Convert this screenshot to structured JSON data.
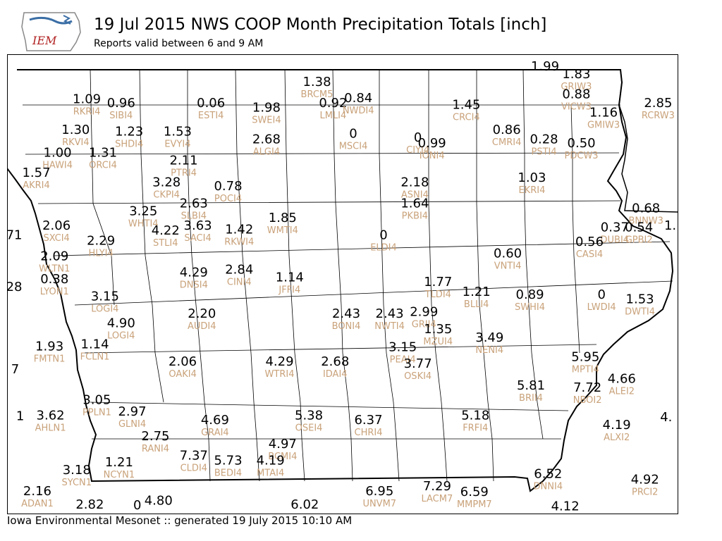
{
  "header": {
    "title": "19 Jul 2015 NWS COOP Month Precipitation Totals [inch]",
    "subtitle": "Reports valid between 6 and 9 AM",
    "logo_text": "IEM"
  },
  "footer": {
    "text": "Iowa Environmental Mesonet :: generated 19 July 2015 10:10 AM"
  },
  "colors": {
    "value": "#000000",
    "station": "#c9a27a",
    "logo_red": "#b22222",
    "logo_blue": "#3a6ea5"
  },
  "stations": [
    {
      "id": "RKRI4",
      "value": "1.09",
      "lon": -96.06,
      "lat": 43.44
    },
    {
      "id": "SIBI4",
      "value": "0.96",
      "lon": -95.72,
      "lat": 43.4
    },
    {
      "id": "ESTI4",
      "value": "0.06",
      "lon": -94.83,
      "lat": 43.4
    },
    {
      "id": "BRCM5",
      "value": "1.38",
      "lon": -93.78,
      "lat": 43.62
    },
    {
      "id": "SWEI4",
      "value": "1.98",
      "lon": -94.28,
      "lat": 43.35
    },
    {
      "id": "LMLI4",
      "value": "0.92",
      "lon": -93.62,
      "lat": 43.4
    },
    {
      "id": "NWDI4",
      "value": "0.84",
      "lon": -93.37,
      "lat": 43.45
    },
    {
      "id": "CRCI4",
      "value": "1.45",
      "lon": -92.3,
      "lat": 43.38
    },
    {
      "id": "GRIW3",
      "value": "1.83",
      "lon": -91.21,
      "lat": 43.7
    },
    {
      "id": "VICW3",
      "value": "0.88",
      "lon": -91.21,
      "lat": 43.49
    },
    {
      "id": "GMIW3",
      "value": "1.16",
      "lon": -90.94,
      "lat": 43.3
    },
    {
      "id": "RCRW3",
      "value": "2.85",
      "lon": -90.4,
      "lat": 43.4
    },
    {
      "id": "RKVI4",
      "value": "1.30",
      "lon": -96.17,
      "lat": 43.12
    },
    {
      "id": "SHDI4",
      "value": "1.23",
      "lon": -95.64,
      "lat": 43.1
    },
    {
      "id": "EVYI4",
      "value": "1.53",
      "lon": -95.16,
      "lat": 43.1
    },
    {
      "id": "MSCI4",
      "value": "0",
      "lon": -93.42,
      "lat": 43.08
    },
    {
      "id": "CIYI4",
      "value": "0",
      "lon": -92.78,
      "lat": 43.04
    },
    {
      "id": "IONI4",
      "value": "0.99",
      "lon": -92.64,
      "lat": 42.98
    },
    {
      "id": "CMRI4",
      "value": "0.86",
      "lon": -91.9,
      "lat": 43.12
    },
    {
      "id": "PSTI4",
      "value": "0.28",
      "lon": -91.53,
      "lat": 43.02
    },
    {
      "id": "PDCW3",
      "value": "0.50",
      "lon": -91.16,
      "lat": 42.98
    },
    {
      "id": "ALGI4",
      "value": "2.68",
      "lon": -94.28,
      "lat": 43.02
    },
    {
      "id": "HAWI4",
      "value": "1.00",
      "lon": -96.35,
      "lat": 42.88
    },
    {
      "id": "ORCI4",
      "value": "1.31",
      "lon": -95.9,
      "lat": 42.88
    },
    {
      "id": "PTRI4",
      "value": "2.11",
      "lon": -95.1,
      "lat": 42.8
    },
    {
      "id": "AKRI4",
      "value": "1.57",
      "lon": -96.56,
      "lat": 42.67
    },
    {
      "id": "CKPI4",
      "value": "3.28",
      "lon": -95.27,
      "lat": 42.57
    },
    {
      "id": "POCI4",
      "value": "0.78",
      "lon": -94.66,
      "lat": 42.53
    },
    {
      "id": "ASNI4",
      "value": "2.18",
      "lon": -92.81,
      "lat": 42.57
    },
    {
      "id": "EKRI4",
      "value": "1.03",
      "lon": -91.65,
      "lat": 42.62
    },
    {
      "id": "SLBI4",
      "value": "2.63",
      "lon": -95.0,
      "lat": 42.35
    },
    {
      "id": "PKBI4",
      "value": "1.64",
      "lon": -92.81,
      "lat": 42.35
    },
    {
      "id": "WHTI4",
      "value": "3.25",
      "lon": -95.5,
      "lat": 42.27
    },
    {
      "id": "BNNW3",
      "value": "0.68",
      "lon": -90.52,
      "lat": 42.3
    },
    {
      "id": "WMTI4",
      "value": "1.85",
      "lon": -94.12,
      "lat": 42.2
    },
    {
      "id": "SXCI4",
      "value": "2.06",
      "lon": -96.36,
      "lat": 42.12
    },
    {
      "id": "STLI4",
      "value": "4.22",
      "lon": -95.28,
      "lat": 42.07
    },
    {
      "id": "SACI4",
      "value": "3.63",
      "lon": -94.96,
      "lat": 42.12
    },
    {
      "id": "RKWI4",
      "value": "1.42",
      "lon": -94.55,
      "lat": 42.08
    },
    {
      "id": "ELDI4",
      "value": "0",
      "lon": -93.12,
      "lat": 42.02
    },
    {
      "id": "DUBI4",
      "value": "0.37",
      "lon": -90.83,
      "lat": 42.1
    },
    {
      "id": "GPBI2",
      "value": "0.54",
      "lon": -90.59,
      "lat": 42.1
    },
    {
      "id": "CASI4",
      "value": "0.56",
      "lon": -91.08,
      "lat": 41.95
    },
    {
      "id": "HLYI4",
      "value": "2.29",
      "lon": -95.92,
      "lat": 41.96
    },
    {
      "id": "WLTN1",
      "value": "2.09",
      "lon": -96.38,
      "lat": 41.8
    },
    {
      "id": "VNTI4",
      "value": "0.60",
      "lon": -91.89,
      "lat": 41.83
    },
    {
      "id": "DNSI4",
      "value": "4.29",
      "lon": -95.0,
      "lat": 41.63
    },
    {
      "id": "CINI4",
      "value": "2.84",
      "lon": -94.55,
      "lat": 41.66
    },
    {
      "id": "JFFI4",
      "value": "1.14",
      "lon": -94.05,
      "lat": 41.58
    },
    {
      "id": "LYON1",
      "value": "0.38",
      "lon": -96.38,
      "lat": 41.56
    },
    {
      "id": "TLDI4",
      "value": "1.77",
      "lon": -92.58,
      "lat": 41.53
    },
    {
      "id": "BLLI4",
      "value": "1.21",
      "lon": -92.2,
      "lat": 41.43
    },
    {
      "id": "SWHI4",
      "value": "0.89",
      "lon": -91.67,
      "lat": 41.4
    },
    {
      "id": "LWDI4",
      "value": "0",
      "lon": -90.96,
      "lat": 41.4
    },
    {
      "id": "DWTI4",
      "value": "1.53",
      "lon": -90.58,
      "lat": 41.35
    },
    {
      "id": "LOGI4",
      "value": "3.15",
      "lon": -95.88,
      "lat": 41.38
    },
    {
      "id": "AUDI4",
      "value": "2.20",
      "lon": -94.92,
      "lat": 41.2
    },
    {
      "id": "BONI4",
      "value": "2.43",
      "lon": -93.49,
      "lat": 41.2
    },
    {
      "id": "NWTI4",
      "value": "2.43",
      "lon": -93.06,
      "lat": 41.2
    },
    {
      "id": "GRII4",
      "value": "2.99",
      "lon": -92.72,
      "lat": 41.22
    },
    {
      "id": "MZUI4",
      "value": "1.35",
      "lon": -92.58,
      "lat": 41.04
    },
    {
      "id": "LOGI4",
      "value": "4.90",
      "lon": -95.72,
      "lat": 41.1
    },
    {
      "id": "NENI4",
      "value": "3.49",
      "lon": -92.07,
      "lat": 40.95
    },
    {
      "id": "FMTN1",
      "value": "1.93",
      "lon": -96.43,
      "lat": 40.86
    },
    {
      "id": "FCLN1",
      "value": "1.14",
      "lon": -95.98,
      "lat": 40.88
    },
    {
      "id": "PEAI4",
      "value": "3.15",
      "lon": -92.93,
      "lat": 40.85
    },
    {
      "id": "OAKI4",
      "value": "2.06",
      "lon": -95.11,
      "lat": 40.7
    },
    {
      "id": "WTRI4",
      "value": "4.29",
      "lon": -94.15,
      "lat": 40.7
    },
    {
      "id": "IDAI4",
      "value": "2.68",
      "lon": -93.6,
      "lat": 40.7
    },
    {
      "id": "OSKI4",
      "value": "3.77",
      "lon": -92.78,
      "lat": 40.68
    },
    {
      "id": "MPTI4",
      "value": "5.95",
      "lon": -91.12,
      "lat": 40.75
    },
    {
      "id": "BRII4",
      "value": "5.81",
      "lon": -91.66,
      "lat": 40.45
    },
    {
      "id": "NBOI2",
      "value": "7.72",
      "lon": -91.1,
      "lat": 40.43
    },
    {
      "id": "ALEI2",
      "value": "4.66",
      "lon": -90.76,
      "lat": 40.52
    },
    {
      "id": "PPLN1",
      "value": "3.05",
      "lon": -95.96,
      "lat": 40.3
    },
    {
      "id": "GLNI4",
      "value": "2.97",
      "lon": -95.61,
      "lat": 40.18
    },
    {
      "id": "AHLN1",
      "value": "3.62",
      "lon": -96.42,
      "lat": 40.14
    },
    {
      "id": "GRAI4",
      "value": "4.69",
      "lon": -94.79,
      "lat": 40.09
    },
    {
      "id": "OSEI4",
      "value": "5.38",
      "lon": -93.86,
      "lat": 40.14
    },
    {
      "id": "CHRI4",
      "value": "6.37",
      "lon": -93.27,
      "lat": 40.09
    },
    {
      "id": "FRFI4",
      "value": "5.18",
      "lon": -92.21,
      "lat": 40.14
    },
    {
      "id": "ALXI2",
      "value": "4.19",
      "lon": -90.81,
      "lat": 40.04
    },
    {
      "id": "RANI4",
      "value": "2.75",
      "lon": -95.38,
      "lat": 39.92
    },
    {
      "id": "BCMI4",
      "value": "4.97",
      "lon": -94.12,
      "lat": 39.84
    },
    {
      "id": "CLDI4",
      "value": "7.37",
      "lon": -95.0,
      "lat": 39.72
    },
    {
      "id": "BEDI4",
      "value": "5.73",
      "lon": -94.66,
      "lat": 39.67
    },
    {
      "id": "MTAI4",
      "value": "4.19",
      "lon": -94.24,
      "lat": 39.67
    },
    {
      "id": "NCYN1",
      "value": "1.21",
      "lon": -95.74,
      "lat": 39.65
    },
    {
      "id": "SYCN1",
      "value": "3.18",
      "lon": -96.16,
      "lat": 39.57
    },
    {
      "id": "DNNI4",
      "value": "6.52",
      "lon": -91.49,
      "lat": 39.53
    },
    {
      "id": "PRCI2",
      "value": "4.92",
      "lon": -90.53,
      "lat": 39.47
    },
    {
      "id": "ADAN1",
      "value": "2.16",
      "lon": -96.55,
      "lat": 39.35
    },
    {
      "id": "UNVM7",
      "value": "6.95",
      "lon": -93.16,
      "lat": 39.35
    },
    {
      "id": "LACM7",
      "value": "7.29",
      "lon": -92.59,
      "lat": 39.4
    },
    {
      "id": "MMPM7",
      "value": "6.59",
      "lon": -92.22,
      "lat": 39.34
    }
  ],
  "partial_values": [
    {
      "value": "1.99",
      "lon": -91.52,
      "lat": 43.78
    },
    {
      "value": "71",
      "lon": -96.78,
      "lat": 42.02
    },
    {
      "value": "28",
      "lon": -96.78,
      "lat": 41.48
    },
    {
      "value": "7",
      "lon": -96.77,
      "lat": 40.62
    },
    {
      "value": "1",
      "lon": -96.72,
      "lat": 40.13
    },
    {
      "value": "1.",
      "lon": -90.28,
      "lat": 42.12
    },
    {
      "value": "4.",
      "lon": -90.32,
      "lat": 40.12
    },
    {
      "value": "4.80",
      "lon": -95.35,
      "lat": 39.25
    },
    {
      "value": "6.02",
      "lon": -93.9,
      "lat": 39.21
    },
    {
      "value": "4.12",
      "lon": -91.32,
      "lat": 39.19
    },
    {
      "value": "0",
      "lon": -95.56,
      "lat": 39.2
    },
    {
      "value": "2.82",
      "lon": -96.03,
      "lat": 39.21
    }
  ],
  "map_bounds": {
    "west": -96.85,
    "east": -90.2,
    "north": 43.95,
    "south": 39.15
  }
}
